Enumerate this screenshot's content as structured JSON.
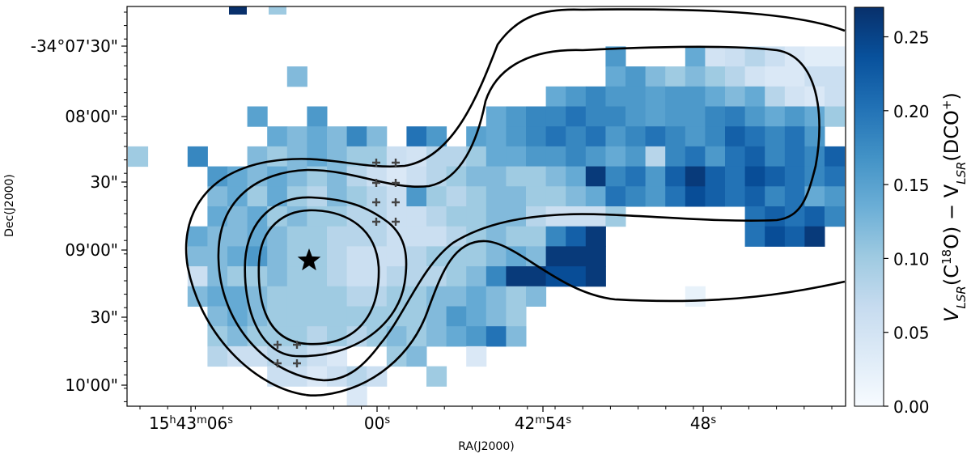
{
  "chart_data": {
    "type": "heatmap",
    "xlabel": "RA(J2000)",
    "ylabel": "Dec(J2000)",
    "x_ticks": [
      {
        "value": "15h43m06s",
        "parts": [
          "15",
          "h",
          "43",
          "m",
          "06",
          "s"
        ]
      },
      {
        "value": "00s",
        "parts": [
          "00",
          "s"
        ]
      },
      {
        "value": "42m54s",
        "parts": [
          "42",
          "m",
          "54",
          "s"
        ]
      },
      {
        "value": "48s",
        "parts": [
          "48",
          "s"
        ]
      }
    ],
    "y_ticks": [
      "-34°07'30\"",
      "08'00\"",
      "30\"",
      "09'00\"",
      "30\"",
      "10'00\""
    ],
    "colorbar": {
      "label": "V_LSR(C18O) − V_LSR(DCO+)",
      "label_parts": [
        "V",
        "LSR",
        "(C",
        "18",
        "O) − V",
        "LSR",
        "(DCO",
        "+",
        ")"
      ],
      "range": [
        0,
        0.27
      ],
      "ticks": [
        "0.00",
        "0.05",
        "0.10",
        "0.15",
        "0.20",
        "0.25"
      ],
      "colormap": "Blues",
      "low_color": "#f7fbff",
      "high_color": "#08306b"
    },
    "marker": {
      "type": "star",
      "label": "protostar",
      "color": "#000000"
    },
    "plus_markers": "grey crosses",
    "contours": "black",
    "grid_rows": [
      "...........................................",
      "...........................................",
      "........................x...xxxxxxxxxx.....",
      "........x...............xxxxxxxxxxxxxxxx...",
      ".....................xxxxxxxxxxxxxxxxxxxx..",
      "......x..x........xxxxxxxxxxxxxxxxxxxxxxx..",
      ".......xxxxxx.xx.xxxxxxxxxxxxxxxxxx.xxx.xx.",
      "x..x..xxxxxxxxxxxxxxxxxxxxxxxxxxxxxxxxxxx..",
      "....xxxxxxxxxxxxxxxxxxxxxxxxxxxxxxxxxxxxx..",
      "....xxxxxxxxxxxxxxxxxxxxxxxxxxxxxxxxxx.x...",
      "....xxxxxxxxxxxxxxxxxxxxx......xxxxxxx..x..",
      "...xxxxxxxxxxxxxxxxxxxxx.......xxxx........",
      "...xxxxxxxxxxxxxxxxxxxxx...................",
      "...xxxxxxxxxxxxxxxxxxxxx...................",
      "...xxxxxxxxxxxxxxxxxx.......x..............",
      "....xxxxxxxxxxxxxxxx.......................",
      "....xxxxxxxxxxxxxxxx.......................",
      "....xxxxxxxxxxx..x.........................",
      ".......xxxxxx..x...........................",
      "...........x...............................",
      "..........................................."
    ],
    "values_note": "cell values estimated from colour, range 0.00–0.27",
    "cell_values": [
      [
        0,
        0,
        0,
        0,
        0,
        0,
        0,
        0,
        0,
        0,
        0,
        0,
        0,
        0,
        0,
        0,
        0,
        0,
        0,
        0,
        0,
        0,
        0,
        0,
        0,
        0,
        0,
        0,
        0,
        0,
        0,
        0,
        0,
        0,
        0,
        0,
        0,
        0,
        0,
        0,
        0,
        0,
        0
      ],
      [
        0,
        0,
        0,
        0,
        0,
        0,
        0,
        0,
        0,
        0,
        0,
        0,
        0,
        0,
        0,
        0,
        0,
        0,
        0,
        0,
        0,
        0,
        0,
        0,
        0,
        0,
        0,
        0,
        0,
        0,
        0,
        0,
        0,
        0,
        0,
        0,
        0,
        0,
        0,
        0,
        0,
        0,
        0
      ],
      [
        0,
        0,
        0,
        0,
        0,
        0,
        0,
        0,
        0,
        0,
        0,
        0,
        0,
        0,
        0,
        0,
        0,
        0,
        0,
        0,
        0,
        0,
        0,
        0,
        0.16,
        0,
        0,
        0,
        0.14,
        0.05,
        0.06,
        0.08,
        0.06,
        0.04,
        0.03,
        0.03,
        0.02,
        0.02,
        0.01,
        0.01,
        0,
        0,
        0
      ],
      [
        0,
        0,
        0,
        0,
        0,
        0,
        0,
        0,
        0.12,
        0,
        0,
        0,
        0,
        0,
        0,
        0,
        0,
        0,
        0,
        0,
        0,
        0,
        0,
        0,
        0.14,
        0.16,
        0.12,
        0.1,
        0.12,
        0.1,
        0.08,
        0.05,
        0.04,
        0.04,
        0.06,
        0.06,
        0.09,
        0.12,
        0.1,
        0.05,
        0,
        0,
        0
      ],
      [
        0,
        0,
        0,
        0,
        0,
        0,
        0,
        0,
        0,
        0,
        0,
        0,
        0,
        0,
        0,
        0,
        0,
        0,
        0,
        0,
        0,
        0.14,
        0.16,
        0.18,
        0.16,
        0.16,
        0.15,
        0.16,
        0.16,
        0.14,
        0.12,
        0.14,
        0.08,
        0.05,
        0.04,
        0.06,
        0.1,
        0.08,
        0.12,
        0.12,
        0.1,
        0,
        0
      ],
      [
        0,
        0,
        0,
        0,
        0,
        0,
        0.15,
        0,
        0,
        0.16,
        0,
        0,
        0,
        0,
        0,
        0,
        0,
        0,
        0.14,
        0.16,
        0.18,
        0.18,
        0.2,
        0.18,
        0.18,
        0.16,
        0.15,
        0.16,
        0.16,
        0.18,
        0.19,
        0.16,
        0.14,
        0.16,
        0.14,
        0.1,
        0.1,
        0.08,
        0.1,
        0.14,
        0.12,
        0.1,
        0
      ],
      [
        0,
        0,
        0,
        0,
        0,
        0,
        0,
        0.14,
        0.12,
        0.14,
        0.12,
        0.18,
        0.12,
        0,
        0.2,
        0.16,
        0,
        0.15,
        0.14,
        0.16,
        0.18,
        0.2,
        0.18,
        0.2,
        0.16,
        0.18,
        0.2,
        0.18,
        0.16,
        0.18,
        0.22,
        0.2,
        0.18,
        0.2,
        0.16,
        0,
        0.12,
        0.1,
        0.12,
        0,
        0.16,
        0.18,
        0
      ],
      [
        0.1,
        0,
        0,
        0.18,
        0,
        0,
        0.12,
        0.1,
        0.12,
        0.14,
        0.12,
        0.1,
        0.1,
        0.06,
        0.05,
        0.08,
        0.08,
        0.1,
        0.14,
        0.14,
        0.16,
        0.16,
        0.18,
        0.16,
        0.14,
        0.16,
        0.08,
        0.18,
        0.2,
        0.16,
        0.2,
        0.22,
        0.18,
        0.2,
        0.18,
        0.22,
        0.2,
        0.16,
        0.12,
        0.14,
        0.16,
        0.18,
        0
      ],
      [
        0,
        0,
        0,
        0,
        0.16,
        0.14,
        0.12,
        0.14,
        0.12,
        0.1,
        0.12,
        0.08,
        0.06,
        0.04,
        0.06,
        0.08,
        0.1,
        0.12,
        0.12,
        0.1,
        0.1,
        0.12,
        0.14,
        0.26,
        0.18,
        0.2,
        0.16,
        0.22,
        0.26,
        0.22,
        0.2,
        0.24,
        0.22,
        0.2,
        0.18,
        0.2,
        0.16,
        0.16,
        0.04,
        0.06,
        0.1,
        0.05,
        0
      ],
      [
        0,
        0,
        0,
        0,
        0.12,
        0.14,
        0.1,
        0.14,
        0.1,
        0.08,
        0.12,
        0.1,
        0.08,
        0.06,
        0.16,
        0.1,
        0.08,
        0.1,
        0.12,
        0.12,
        0.1,
        0.1,
        0.12,
        0.14,
        0.2,
        0.18,
        0.16,
        0.2,
        0.24,
        0.22,
        0.2,
        0.22,
        0.18,
        0.2,
        0.14,
        0.16,
        0.18,
        0.2,
        0,
        0,
        0.26,
        0,
        0
      ],
      [
        0,
        0,
        0,
        0,
        0.14,
        0.12,
        0.14,
        0.1,
        0.12,
        0.1,
        0.1,
        0.08,
        0.08,
        0.06,
        0.06,
        0.08,
        0.1,
        0.1,
        0.12,
        0.12,
        0.08,
        0.06,
        0.06,
        0.06,
        0.1,
        0,
        0,
        0,
        0,
        0,
        0,
        0.2,
        0.22,
        0.2,
        0.22,
        0.18,
        0.16,
        0.14,
        0,
        0,
        0.14,
        0,
        0
      ],
      [
        0,
        0,
        0,
        0.14,
        0.12,
        0.12,
        0.14,
        0.12,
        0.1,
        0.1,
        0.08,
        0.08,
        0.08,
        0.06,
        0.06,
        0.06,
        0.08,
        0.1,
        0.12,
        0.1,
        0.1,
        0.18,
        0.22,
        0.26,
        0,
        0,
        0,
        0,
        0,
        0,
        0,
        0.2,
        0.24,
        0.22,
        0.26,
        0,
        0,
        0,
        0,
        0,
        0,
        0,
        0
      ],
      [
        0,
        0,
        0,
        0.12,
        0.12,
        0.14,
        0.16,
        0.12,
        0.1,
        0.1,
        0.08,
        0.06,
        0.06,
        0.06,
        0.08,
        0.1,
        0.1,
        0.1,
        0.12,
        0.14,
        0.12,
        0.26,
        0.26,
        0.26,
        0,
        0,
        0,
        0,
        0,
        0,
        0,
        0,
        0,
        0,
        0,
        0,
        0,
        0,
        0,
        0,
        0,
        0,
        0
      ],
      [
        0,
        0,
        0,
        0.06,
        0.12,
        0.1,
        0.1,
        0.12,
        0.1,
        0.1,
        0.08,
        0.06,
        0.06,
        0.08,
        0.08,
        0.08,
        0.1,
        0.12,
        0.18,
        0.26,
        0.26,
        0.24,
        0.24,
        0.26,
        0,
        0,
        0,
        0,
        0,
        0,
        0,
        0,
        0,
        0,
        0,
        0,
        0,
        0,
        0,
        0,
        0,
        0,
        0
      ],
      [
        0,
        0,
        0,
        0.12,
        0.14,
        0.14,
        0.12,
        0.1,
        0.1,
        0.1,
        0.1,
        0.08,
        0.08,
        0.1,
        0.1,
        0.12,
        0.12,
        0.14,
        0.12,
        0.1,
        0.12,
        0,
        0,
        0,
        0,
        0,
        0,
        0,
        0.02,
        0,
        0,
        0,
        0,
        0,
        0,
        0,
        0,
        0,
        0,
        0,
        0,
        0,
        0
      ],
      [
        0,
        0,
        0,
        0,
        0.12,
        0.14,
        0.12,
        0.1,
        0.1,
        0.1,
        0.1,
        0.1,
        0.1,
        0.1,
        0.1,
        0.12,
        0.16,
        0.14,
        0.12,
        0.1,
        0,
        0,
        0,
        0,
        0,
        0,
        0,
        0,
        0,
        0,
        0,
        0,
        0,
        0,
        0,
        0,
        0,
        0,
        0,
        0,
        0,
        0,
        0
      ],
      [
        0,
        0,
        0,
        0,
        0.1,
        0.12,
        0.1,
        0.1,
        0.1,
        0.08,
        0.1,
        0.08,
        0.1,
        0.12,
        0.1,
        0.12,
        0.14,
        0.16,
        0.2,
        0.12,
        0,
        0,
        0,
        0,
        0,
        0,
        0,
        0,
        0,
        0,
        0,
        0,
        0,
        0,
        0,
        0,
        0,
        0,
        0,
        0,
        0,
        0,
        0
      ],
      [
        0,
        0,
        0,
        0,
        0.08,
        0.06,
        0.06,
        0.08,
        0.08,
        0.06,
        0.04,
        0,
        0,
        0.1,
        0.12,
        0,
        0,
        0.04,
        0,
        0,
        0,
        0,
        0,
        0,
        0,
        0,
        0,
        0,
        0,
        0,
        0,
        0,
        0,
        0,
        0,
        0,
        0,
        0,
        0,
        0,
        0,
        0,
        0
      ],
      [
        0,
        0,
        0,
        0,
        0,
        0,
        0,
        0.06,
        0.06,
        0.04,
        0.06,
        0.08,
        0.06,
        0,
        0,
        0.1,
        0,
        0,
        0,
        0,
        0,
        0,
        0,
        0,
        0,
        0,
        0,
        0,
        0,
        0,
        0,
        0,
        0,
        0,
        0,
        0,
        0,
        0,
        0,
        0,
        0,
        0,
        0
      ],
      [
        0,
        0,
        0,
        0,
        0,
        0,
        0,
        0,
        0,
        0,
        0,
        0.04,
        0,
        0,
        0,
        0,
        0,
        0,
        0,
        0,
        0,
        0,
        0,
        0,
        0,
        0,
        0,
        0,
        0,
        0,
        0,
        0,
        0,
        0,
        0,
        0,
        0,
        0,
        0,
        0,
        0,
        0,
        0
      ],
      [
        0,
        0,
        0,
        0,
        0,
        0,
        0,
        0,
        0,
        0,
        0,
        0,
        0,
        0,
        0,
        0,
        0,
        0,
        0,
        0,
        0,
        0,
        0,
        0,
        0,
        0,
        0,
        0,
        0,
        0,
        0,
        0,
        0,
        0,
        0,
        0,
        0,
        0,
        0,
        0,
        0,
        0,
        0
      ]
    ]
  }
}
